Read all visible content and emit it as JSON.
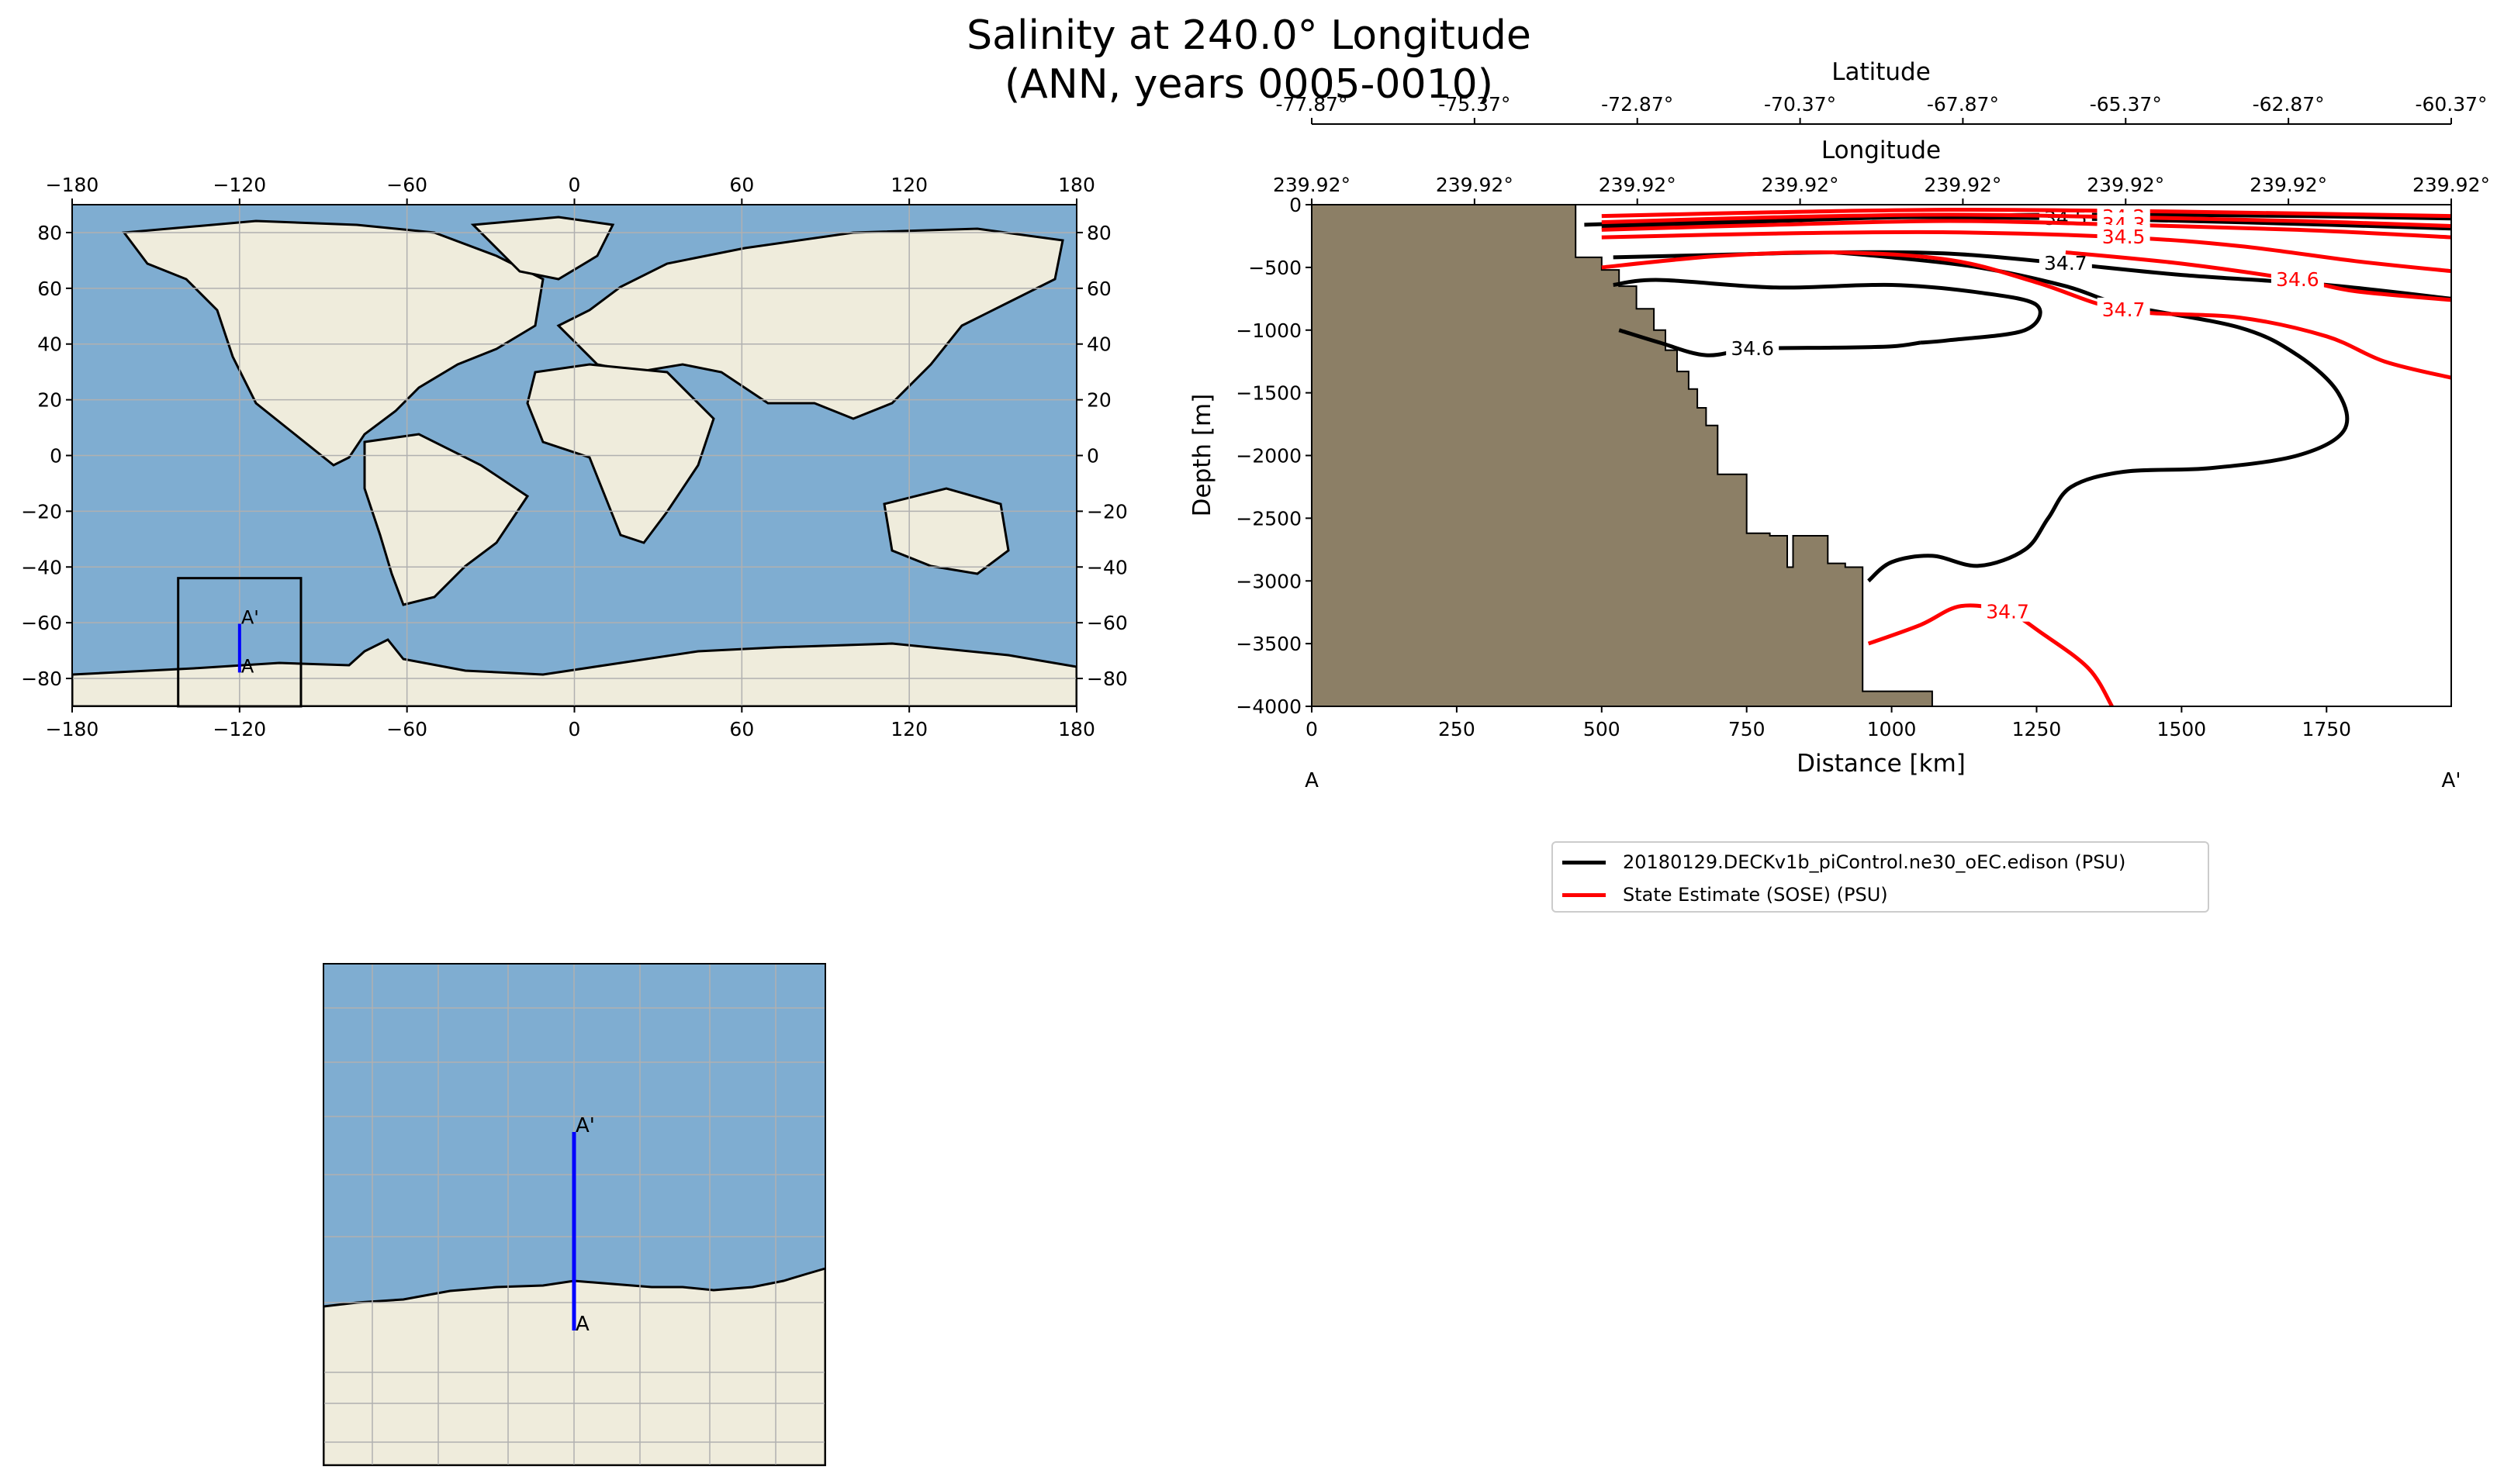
{
  "figure": {
    "title_line1": "Salinity at 240.0° Longitude",
    "title_line2": "(ANN, years 0005-0010)"
  },
  "colors": {
    "ocean": "#7fadd1",
    "land": "#efecdc",
    "seafloor": "#8c7f66",
    "model_contour": "#000000",
    "obs_contour": "#ff0000",
    "transect": "#0000ff",
    "grid": "#b0b0b0"
  },
  "chart_data": [
    {
      "type": "map",
      "projection": "PlateCarree",
      "xlim": [
        -180,
        180
      ],
      "ylim": [
        -90,
        90
      ],
      "x_ticks": [
        "−180",
        "−120",
        "−60",
        "0",
        "60",
        "120",
        "180"
      ],
      "y_ticks": [
        "80",
        "60",
        "40",
        "20",
        "0",
        "−20",
        "−40",
        "−60",
        "−80"
      ],
      "grid": true,
      "inset_box": {
        "lon": [
          -142,
          -98
        ],
        "lat": [
          -90,
          -44
        ]
      },
      "transect": {
        "lon": 240.0,
        "lat_start": -77.87,
        "lat_end": -60.37,
        "start_label": "A",
        "end_label": "A'"
      }
    },
    {
      "type": "map_inset",
      "grid": true,
      "transect": {
        "start_label": "A",
        "end_label": "A'"
      }
    },
    {
      "type": "contour",
      "title": "",
      "xlabel": "Distance [km]",
      "ylabel": "Depth [m]",
      "xlim": [
        0,
        1965
      ],
      "ylim": [
        -4000,
        0
      ],
      "x_ticks": [
        0,
        250,
        500,
        750,
        1000,
        1250,
        1500,
        1750
      ],
      "y_ticks": [
        0,
        -500,
        -1000,
        -1500,
        -2000,
        -2500,
        -3000,
        -3500,
        -4000
      ],
      "top_axis_1": {
        "label": "Longitude",
        "ticks": [
          "239.92°",
          "239.92°",
          "239.92°",
          "239.92°",
          "239.92°",
          "239.92°",
          "239.92°",
          "239.92°"
        ]
      },
      "top_axis_2": {
        "label": "Latitude",
        "ticks": [
          "-77.87°",
          "-75.37°",
          "-72.87°",
          "-70.37°",
          "-67.87°",
          "-65.37°",
          "-62.87°",
          "-60.37°"
        ]
      },
      "end_labels": {
        "left": "A",
        "right": "A'"
      },
      "seafloor": [
        [
          0,
          0
        ],
        [
          455,
          0
        ],
        [
          455,
          -420
        ],
        [
          500,
          -420
        ],
        [
          500,
          -520
        ],
        [
          530,
          -520
        ],
        [
          530,
          -650
        ],
        [
          560,
          -650
        ],
        [
          560,
          -830
        ],
        [
          590,
          -830
        ],
        [
          590,
          -1000
        ],
        [
          610,
          -1000
        ],
        [
          610,
          -1160
        ],
        [
          630,
          -1160
        ],
        [
          630,
          -1330
        ],
        [
          650,
          -1330
        ],
        [
          650,
          -1470
        ],
        [
          665,
          -1470
        ],
        [
          665,
          -1620
        ],
        [
          680,
          -1620
        ],
        [
          680,
          -1760
        ],
        [
          700,
          -1760
        ],
        [
          700,
          -2150
        ],
        [
          750,
          -2150
        ],
        [
          750,
          -2620
        ],
        [
          790,
          -2620
        ],
        [
          790,
          -2640
        ],
        [
          820,
          -2640
        ],
        [
          820,
          -2890
        ],
        [
          830,
          -2890
        ],
        [
          830,
          -2640
        ],
        [
          890,
          -2640
        ],
        [
          890,
          -2860
        ],
        [
          920,
          -2860
        ],
        [
          920,
          -2890
        ],
        [
          950,
          -2890
        ],
        [
          950,
          -3880
        ],
        [
          1070,
          -3880
        ],
        [
          1070,
          -4000
        ],
        [
          0,
          -4000
        ]
      ],
      "series": [
        {
          "name": "20180129.DECKv1b_piControl.ne30_oEC.edison (PSU)",
          "contours": [
            {
              "level": 34.4,
              "label": "34.4",
              "points": [
                [
                  500,
                  -180
                ],
                [
                  800,
                  -130
                ],
                [
                  1100,
                  -90
                ],
                [
                  1400,
                  -80
                ],
                [
                  1700,
                  -90
                ],
                [
                  1965,
                  -110
                ]
              ]
            },
            {
              "level": 34.5,
              "label": "34.5",
              "points": [
                [
                  470,
                  -160
                ],
                [
                  750,
                  -120
                ],
                [
                  1000,
                  -100
                ],
                [
                  1300,
                  -110
                ],
                [
                  1600,
                  -140
                ],
                [
                  1965,
                  -190
                ]
              ]
            },
            {
              "level": 34.6,
              "label": "34.6",
              "points": [
                [
                  530,
                  -1000
                ],
                [
                  600,
                  -1100
                ],
                [
                  680,
                  -1200
                ],
                [
                  760,
                  -1150
                ],
                [
                  900,
                  -1140
                ],
                [
                  1000,
                  -1130
                ],
                [
                  1050,
                  -1100
                ]
              ]
            },
            {
              "level": 34.7,
              "label": "34.7",
              "points": [
                [
                  520,
                  -420
                ],
                [
                  700,
                  -400
                ],
                [
                  900,
                  -380
                ],
                [
                  1100,
                  -390
                ],
                [
                  1300,
                  -470
                ],
                [
                  1500,
                  -560
                ],
                [
                  1750,
                  -640
                ],
                [
                  1965,
                  -750
                ]
              ]
            },
            {
              "level": 34.7,
              "points": [
                [
                  520,
                  -640
                ],
                [
                  600,
                  -600
                ],
                [
                  800,
                  -660
                ],
                [
                  1000,
                  -640
                ],
                [
                  1150,
                  -700
                ],
                [
                  1250,
                  -800
                ],
                [
                  1230,
                  -1000
                ],
                [
                  1100,
                  -1080
                ],
                [
                  1050,
                  -1100
                ]
              ]
            },
            {
              "level": 34.7,
              "points": [
                [
                  960,
                  -3000
                ],
                [
                  1000,
                  -2850
                ],
                [
                  1070,
                  -2800
                ],
                [
                  1150,
                  -2880
                ],
                [
                  1230,
                  -2750
                ],
                [
                  1270,
                  -2500
                ],
                [
                  1310,
                  -2250
                ],
                [
                  1400,
                  -2130
                ],
                [
                  1550,
                  -2100
                ],
                [
                  1700,
                  -2000
                ],
                [
                  1780,
                  -1800
                ],
                [
                  1770,
                  -1500
                ],
                [
                  1700,
                  -1200
                ],
                [
                  1600,
                  -980
                ],
                [
                  1400,
                  -800
                ],
                [
                  1300,
                  -650
                ],
                [
                  1150,
                  -500
                ],
                [
                  1000,
                  -420
                ],
                [
                  900,
                  -380
                ]
              ]
            }
          ]
        },
        {
          "name": "State Estimate (SOSE) (PSU)",
          "contours": [
            {
              "level": 34.1,
              "label": "34.1",
              "points": [
                [
                  500,
                  -90
                ],
                [
                  800,
                  -60
                ],
                [
                  1100,
                  -40
                ],
                [
                  1400,
                  -50
                ],
                [
                  1700,
                  -70
                ],
                [
                  1965,
                  -90
                ]
              ]
            },
            {
              "level": 34.2,
              "label": "34.2",
              "points": [
                [
                  500,
                  -140
                ],
                [
                  800,
                  -100
                ],
                [
                  1100,
                  -80
                ],
                [
                  1400,
                  -100
                ],
                [
                  1700,
                  -130
                ],
                [
                  1965,
                  -170
                ]
              ]
            },
            {
              "level": 34.3,
              "label": "34.3",
              "points": [
                [
                  500,
                  -200
                ],
                [
                  800,
                  -160
                ],
                [
                  1100,
                  -130
                ],
                [
                  1400,
                  -160
                ],
                [
                  1700,
                  -200
                ],
                [
                  1965,
                  -260
                ]
              ]
            },
            {
              "level": 34.5,
              "label": "34.5",
              "points": [
                [
                  500,
                  -260
                ],
                [
                  800,
                  -230
                ],
                [
                  1100,
                  -220
                ],
                [
                  1400,
                  -260
                ],
                [
                  1600,
                  -330
                ],
                [
                  1800,
                  -450
                ],
                [
                  1965,
                  -530
                ]
              ]
            },
            {
              "level": 34.6,
              "label": "34.6",
              "points": [
                [
                  1300,
                  -380
                ],
                [
                  1500,
                  -470
                ],
                [
                  1700,
                  -600
                ],
                [
                  1800,
                  -690
                ],
                [
                  1965,
                  -760
                ]
              ]
            },
            {
              "level": 34.7,
              "label": "34.7",
              "points": [
                [
                  500,
                  -500
                ],
                [
                  700,
                  -410
                ],
                [
                  900,
                  -380
                ],
                [
                  1100,
                  -440
                ],
                [
                  1250,
                  -620
                ],
                [
                  1400,
                  -840
                ],
                [
                  1600,
                  -900
                ],
                [
                  1750,
                  -1050
                ],
                [
                  1850,
                  -1250
                ],
                [
                  1965,
                  -1380
                ]
              ]
            },
            {
              "level": 34.7,
              "label": "34.7",
              "points": [
                [
                  960,
                  -3500
                ],
                [
                  1050,
                  -3350
                ],
                [
                  1120,
                  -3200
                ],
                [
                  1200,
                  -3250
                ],
                [
                  1260,
                  -3420
                ],
                [
                  1340,
                  -3700
                ],
                [
                  1380,
                  -4000
                ]
              ]
            }
          ]
        }
      ]
    }
  ]
}
